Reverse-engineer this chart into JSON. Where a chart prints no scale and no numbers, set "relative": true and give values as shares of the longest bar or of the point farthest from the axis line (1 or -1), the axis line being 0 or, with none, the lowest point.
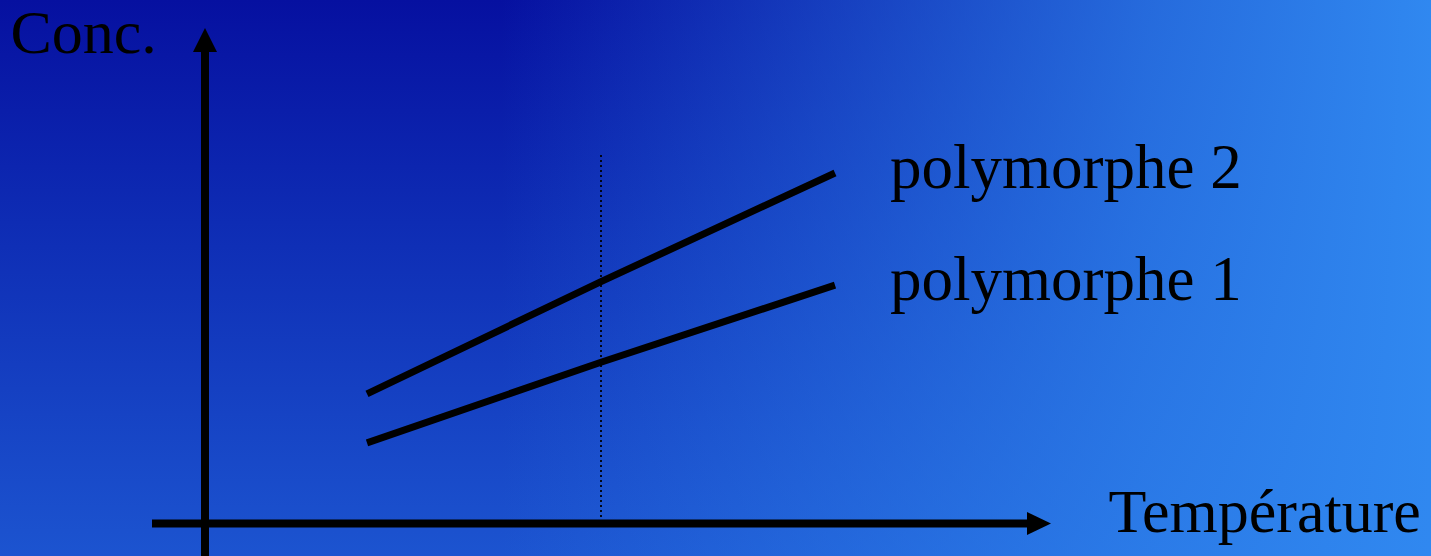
{
  "chart_data": {
    "type": "line",
    "relative": true,
    "xlabel": "Température",
    "ylabel": "Conc.",
    "categories": [
      null,
      null,
      null
    ],
    "series": [
      {
        "name": "polymorphe 2",
        "color": "#000000",
        "values": [
          0.37,
          0.69,
          1
        ]
      },
      {
        "name": "polymorphe 1",
        "color": "#000000",
        "values": [
          0.23,
          0.46,
          0.68
        ]
      }
    ]
  }
}
